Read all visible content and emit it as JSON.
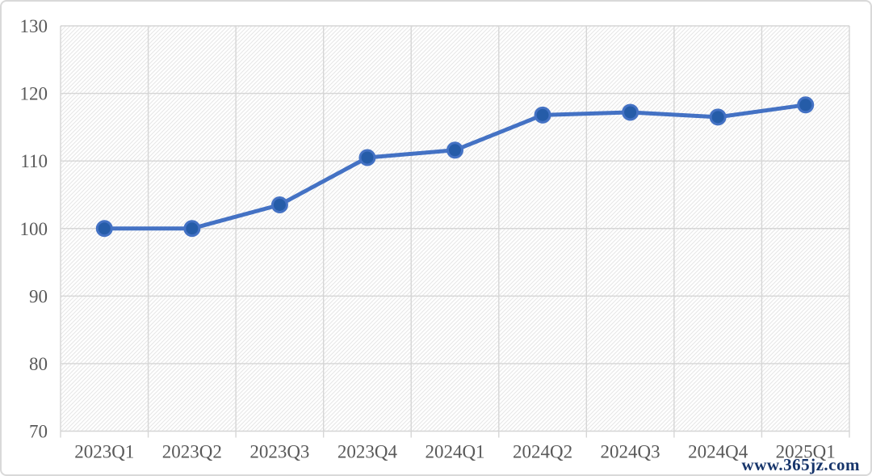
{
  "watermark": {
    "text": "www.365jz.com",
    "color": "#17356B"
  },
  "chart_data": {
    "type": "line",
    "categories": [
      "2023Q1",
      "2023Q2",
      "2023Q3",
      "2023Q4",
      "2024Q1",
      "2024Q2",
      "2024Q3",
      "2024Q4",
      "2025Q1"
    ],
    "values": [
      100.0,
      100.0,
      103.5,
      110.5,
      111.6,
      116.8,
      117.2,
      116.5,
      118.3
    ],
    "title": "",
    "xlabel": "",
    "ylabel": "",
    "ylim": [
      70,
      130
    ],
    "ytick_step": 10,
    "ytick_labels": [
      "70",
      "80",
      "90",
      "100",
      "110",
      "120",
      "130"
    ],
    "grid": true,
    "legend": false,
    "plot_background": "hatched",
    "colors": {
      "line": "#4472C4",
      "marker_fill": "#255CA8",
      "marker_stroke": "#4472C4",
      "grid": "#D6D6D6",
      "hatch": "#E7E7E7",
      "plot_bg": "#FFFFFF",
      "tick_label": "#595959",
      "chart_border": "#D9D9D9"
    }
  }
}
